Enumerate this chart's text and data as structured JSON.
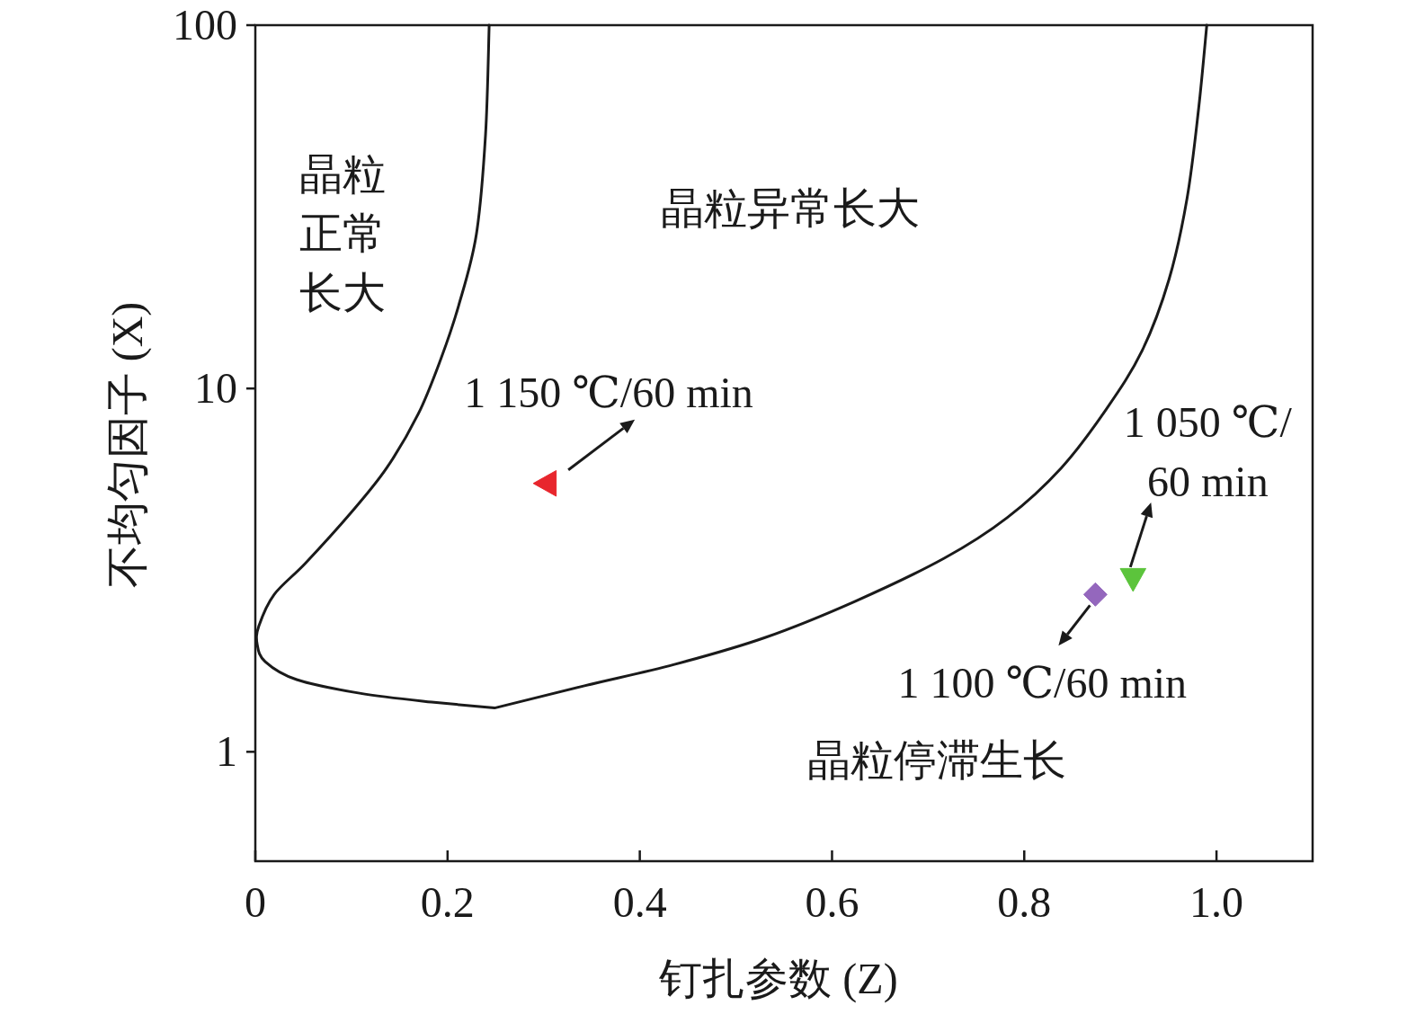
{
  "chart_data": {
    "type": "line",
    "xlabel": "钉扎参数 (Z)",
    "ylabel": "不均匀因子 (X)",
    "log": "y",
    "xlim": [
      0,
      1.1
    ],
    "ylim": [
      0.5,
      100
    ],
    "xticks": [
      0,
      0.2,
      0.4,
      0.6,
      0.8,
      {
        "value": 1,
        "label": "1.0"
      }
    ],
    "yticks": [
      1,
      10,
      100
    ],
    "series": [
      {
        "color": "#1a1a1a",
        "x": [
          0.2433,
          0.2395,
          0.23,
          0.2115,
          0.1927,
          0.1694,
          0.1366,
          0.0992,
          0.0524,
          0.0196,
          0.0037,
          0.0019,
          0.0103,
          0.043,
          0.1085,
          0.1834,
          0.2489,
          0.3425,
          0.436,
          0.5296,
          0.6232,
          0.7167,
          0.7822,
          0.8384,
          0.8851,
          0.9226,
          0.9507,
          0.9694,
          0.9815,
          0.9899
        ],
        "values": [
          100,
          49.9,
          26.6,
          16.9,
          12.0,
          8.5,
          6.04,
          4.54,
          3.31,
          2.71,
          2.22,
          1.98,
          1.77,
          1.58,
          1.45,
          1.37,
          1.32,
          1.52,
          1.74,
          2.06,
          2.59,
          3.41,
          4.41,
          6.04,
          8.75,
          12.7,
          20.0,
          33.4,
          59.2,
          100
        ]
      },
      {
        "type": "scatter",
        "marker": "triangle",
        "color": "#e8262d",
        "x": [
          0.3032
        ],
        "values": [
          5.48
        ]
      },
      {
        "type": "scatter",
        "marker": "triangle",
        "color": "#5cc43c",
        "x": [
          0.9132
        ],
        "values": [
          3.01
        ]
      },
      {
        "type": "scatter",
        "marker": "diamond",
        "color": "#9467bd",
        "x": [
          0.874
        ],
        "values": [
          2.71
        ]
      }
    ],
    "annotations": [
      {
        "text": "1 150 ℃/60 min",
        "x": 0.3032,
        "y": 5.48
      },
      {
        "text": "1 050 ℃/\n60 min",
        "x": 0.9132,
        "y": 3.01
      },
      {
        "text": "1 100 ℃/60 min",
        "x": 0.874,
        "y": 2.71
      },
      "晶粒正常长大",
      "晶粒异常长大",
      "晶粒停滞生长"
    ]
  }
}
